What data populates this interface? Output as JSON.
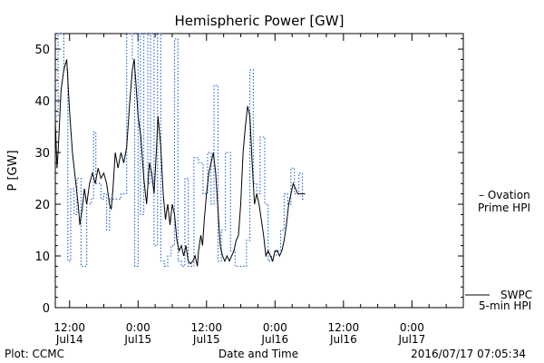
{
  "chart_data": {
    "type": "line",
    "title": "Hemispheric Power [GW]",
    "xlabel": "Date and Time",
    "ylabel": "P [GW]",
    "ylim": [
      0,
      53
    ],
    "grid": false,
    "y_ticks": [
      0,
      10,
      20,
      30,
      40,
      50
    ],
    "x_ticks": [
      {
        "t": 12,
        "time": "12:00",
        "date": "Jul14"
      },
      {
        "t": 24,
        "time": "0:00",
        "date": "Jul15"
      },
      {
        "t": 36,
        "time": "12:00",
        "date": "Jul15"
      },
      {
        "t": 48,
        "time": "0:00",
        "date": "Jul16"
      },
      {
        "t": 60,
        "time": "12:00",
        "date": "Jul16"
      },
      {
        "t": 72,
        "time": "0:00",
        "date": "Jul17"
      }
    ],
    "x_range": [
      9.5,
      81
    ],
    "series": [
      {
        "name": "Ovation Prime HPI",
        "legend_lines": [
          "– Ovation",
          "Prime HPI"
        ],
        "color": "#1f5fd0",
        "style": "dotted-step",
        "points": [
          [
            9.5,
            37
          ],
          [
            10,
            53
          ],
          [
            11,
            46
          ],
          [
            11.7,
            9
          ],
          [
            12.2,
            23
          ],
          [
            12.8,
            18
          ],
          [
            13.3,
            25
          ],
          [
            14,
            8
          ],
          [
            15,
            20
          ],
          [
            15.8,
            21
          ],
          [
            16.2,
            34
          ],
          [
            16.6,
            24
          ],
          [
            17.5,
            21
          ],
          [
            18,
            22
          ],
          [
            18.5,
            15
          ],
          [
            19,
            21
          ],
          [
            20,
            21
          ],
          [
            21,
            22
          ],
          [
            22,
            53
          ],
          [
            23,
            48
          ],
          [
            23.4,
            8
          ],
          [
            24,
            53
          ],
          [
            24.4,
            18
          ],
          [
            25,
            53
          ],
          [
            25.7,
            24
          ],
          [
            26.2,
            53
          ],
          [
            26.8,
            12
          ],
          [
            27.4,
            53
          ],
          [
            28,
            9
          ],
          [
            28.6,
            8
          ],
          [
            29.2,
            10
          ],
          [
            29.8,
            12
          ],
          [
            30.4,
            52
          ],
          [
            31,
            9
          ],
          [
            31.6,
            8
          ],
          [
            32.2,
            25
          ],
          [
            32.8,
            8
          ],
          [
            33.8,
            29
          ],
          [
            34.6,
            28
          ],
          [
            35.4,
            22
          ],
          [
            36.2,
            30
          ],
          [
            36.8,
            20
          ],
          [
            37.3,
            43
          ],
          [
            38,
            9
          ],
          [
            38.6,
            15
          ],
          [
            39.3,
            30
          ],
          [
            40.2,
            11
          ],
          [
            41,
            8
          ],
          [
            42,
            8
          ],
          [
            43,
            13
          ],
          [
            43.6,
            46
          ],
          [
            44.2,
            24
          ],
          [
            44.8,
            22
          ],
          [
            45.4,
            33
          ],
          [
            46.2,
            20
          ],
          [
            46.8,
            9
          ],
          [
            47.4,
            10
          ],
          [
            48.2,
            11
          ],
          [
            49,
            15
          ],
          [
            49.6,
            22
          ],
          [
            50.2,
            20
          ],
          [
            50.8,
            27
          ],
          [
            51.4,
            22
          ],
          [
            52.2,
            26
          ],
          [
            52.8,
            21
          ],
          [
            53.3,
            21
          ]
        ]
      },
      {
        "name": "SWPC 5-min HPI",
        "legend_lines": [
          "SWPC",
          "5-min HPI"
        ],
        "color": "#000000",
        "style": "solid",
        "points": [
          [
            9.5,
            36
          ],
          [
            9.8,
            27
          ],
          [
            10,
            30
          ],
          [
            10.5,
            42
          ],
          [
            11,
            46
          ],
          [
            11.5,
            48
          ],
          [
            12,
            38
          ],
          [
            12.5,
            30
          ],
          [
            13,
            25
          ],
          [
            13.5,
            20
          ],
          [
            13.8,
            16
          ],
          [
            14.2,
            19
          ],
          [
            14.6,
            23
          ],
          [
            15,
            20
          ],
          [
            15.5,
            24
          ],
          [
            16,
            26
          ],
          [
            16.5,
            24
          ],
          [
            17,
            27
          ],
          [
            17.5,
            25
          ],
          [
            18,
            26
          ],
          [
            18.5,
            24
          ],
          [
            19,
            20
          ],
          [
            19.3,
            19
          ],
          [
            19.6,
            23
          ],
          [
            20,
            30
          ],
          [
            20.5,
            27
          ],
          [
            21,
            30
          ],
          [
            21.5,
            28
          ],
          [
            22,
            31
          ],
          [
            22.5,
            39
          ],
          [
            23,
            46
          ],
          [
            23.3,
            48
          ],
          [
            23.6,
            44
          ],
          [
            24,
            37
          ],
          [
            24.5,
            33
          ],
          [
            25,
            25
          ],
          [
            25.5,
            20
          ],
          [
            26,
            28
          ],
          [
            26.4,
            26
          ],
          [
            26.8,
            22
          ],
          [
            27.2,
            30
          ],
          [
            27.5,
            37
          ],
          [
            28,
            31
          ],
          [
            28.4,
            22
          ],
          [
            28.8,
            17
          ],
          [
            29.2,
            20
          ],
          [
            29.6,
            16
          ],
          [
            30,
            20
          ],
          [
            30.4,
            18
          ],
          [
            30.8,
            13
          ],
          [
            31.2,
            11
          ],
          [
            31.6,
            12
          ],
          [
            32,
            10
          ],
          [
            32.4,
            12
          ],
          [
            32.8,
            9
          ],
          [
            33.2,
            8.5
          ],
          [
            33.6,
            9
          ],
          [
            34,
            10
          ],
          [
            34.4,
            8
          ],
          [
            34.6,
            11
          ],
          [
            35,
            14
          ],
          [
            35.3,
            12
          ],
          [
            35.6,
            17
          ],
          [
            36,
            22
          ],
          [
            36.4,
            26
          ],
          [
            36.8,
            28
          ],
          [
            37.2,
            30
          ],
          [
            37.6,
            26
          ],
          [
            38,
            19
          ],
          [
            38.4,
            12
          ],
          [
            38.8,
            10
          ],
          [
            39.2,
            9
          ],
          [
            39.6,
            10
          ],
          [
            40,
            9
          ],
          [
            40.4,
            10
          ],
          [
            40.8,
            11
          ],
          [
            41.2,
            13
          ],
          [
            41.6,
            14
          ],
          [
            42,
            20
          ],
          [
            42.4,
            30
          ],
          [
            42.8,
            35
          ],
          [
            43.2,
            39
          ],
          [
            43.6,
            37
          ],
          [
            44,
            28
          ],
          [
            44.4,
            20
          ],
          [
            44.8,
            22
          ],
          [
            45.2,
            20
          ],
          [
            45.6,
            17
          ],
          [
            46,
            14
          ],
          [
            46.4,
            10
          ],
          [
            46.8,
            11
          ],
          [
            47.2,
            10
          ],
          [
            47.6,
            9
          ],
          [
            48,
            11
          ],
          [
            48.4,
            11
          ],
          [
            48.8,
            10
          ],
          [
            49.2,
            11
          ],
          [
            49.6,
            13
          ],
          [
            50,
            16
          ],
          [
            50.4,
            20
          ],
          [
            50.8,
            22
          ],
          [
            51.2,
            24
          ],
          [
            51.6,
            23
          ],
          [
            52,
            22
          ],
          [
            52.4,
            22
          ],
          [
            53.3,
            22
          ]
        ]
      }
    ]
  },
  "footer": {
    "left": "Plot: CCMC",
    "right": "2016/07/17 07:05:34"
  }
}
